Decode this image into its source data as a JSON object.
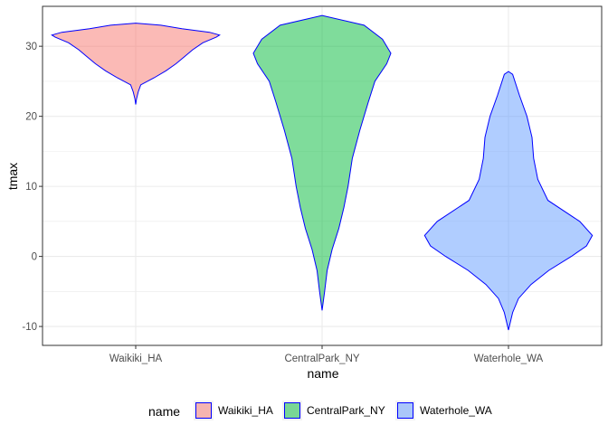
{
  "chart_data": {
    "type": "violin",
    "xlabel": "name",
    "ylabel": "tmax",
    "categories": [
      "Waikiki_HA",
      "CentralPark_NY",
      "Waterhole_WA"
    ],
    "ylim": [
      -12.7,
      35.7
    ],
    "yticks": [
      -10,
      0,
      10,
      20,
      30
    ],
    "grid": true,
    "outline_color": "#0000ff",
    "legend": {
      "title": "name",
      "position": "bottom"
    },
    "series": [
      {
        "name": "Waikiki_HA",
        "color": "#f8766d",
        "min": 21.7,
        "max": 33.3,
        "profile": [
          [
            21.7,
            0.0
          ],
          [
            22.5,
            0.01
          ],
          [
            23.5,
            0.03
          ],
          [
            24.5,
            0.06
          ],
          [
            25.5,
            0.22
          ],
          [
            26.5,
            0.36
          ],
          [
            27.5,
            0.48
          ],
          [
            28.5,
            0.58
          ],
          [
            29.5,
            0.68
          ],
          [
            30.5,
            0.8
          ],
          [
            31.3,
            0.96
          ],
          [
            31.6,
            1.0
          ],
          [
            32.0,
            0.88
          ],
          [
            32.5,
            0.55
          ],
          [
            33.0,
            0.3
          ],
          [
            33.3,
            0.0
          ]
        ]
      },
      {
        "name": "CentralPark_NY",
        "color": "#00ba38",
        "min": -7.7,
        "max": 34.4,
        "profile": [
          [
            -7.7,
            0.0
          ],
          [
            -5.0,
            0.03
          ],
          [
            -2.0,
            0.06
          ],
          [
            1.0,
            0.12
          ],
          [
            4.0,
            0.2
          ],
          [
            7.0,
            0.26
          ],
          [
            10.0,
            0.31
          ],
          [
            14.0,
            0.36
          ],
          [
            18.0,
            0.45
          ],
          [
            22.0,
            0.55
          ],
          [
            25.0,
            0.63
          ],
          [
            27.5,
            0.77
          ],
          [
            29.0,
            0.82
          ],
          [
            31.0,
            0.72
          ],
          [
            33.0,
            0.5
          ],
          [
            34.4,
            0.0
          ]
        ]
      },
      {
        "name": "Waterhole_WA",
        "color": "#619cff",
        "min": -10.5,
        "max": 26.4,
        "profile": [
          [
            -10.5,
            0.0
          ],
          [
            -8.0,
            0.05
          ],
          [
            -6.0,
            0.12
          ],
          [
            -4.0,
            0.27
          ],
          [
            -2.0,
            0.48
          ],
          [
            0.0,
            0.75
          ],
          [
            1.5,
            0.93
          ],
          [
            3.0,
            1.0
          ],
          [
            5.0,
            0.85
          ],
          [
            8.0,
            0.47
          ],
          [
            11.0,
            0.35
          ],
          [
            14.0,
            0.3
          ],
          [
            17.0,
            0.28
          ],
          [
            20.0,
            0.22
          ],
          [
            23.0,
            0.13
          ],
          [
            26.0,
            0.05
          ],
          [
            26.4,
            0.0
          ]
        ]
      }
    ]
  }
}
